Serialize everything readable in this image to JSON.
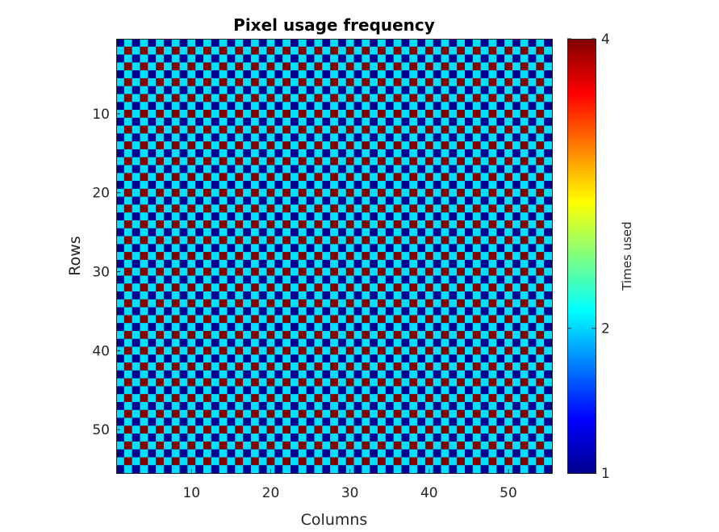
{
  "chart_data": {
    "type": "heatmap",
    "title": "Pixel usage frequency",
    "xlabel": "Columns",
    "ylabel": "Rows",
    "x_range": [
      1,
      55
    ],
    "y_range": [
      1,
      55
    ],
    "y_reversed": true,
    "x_ticks": [
      "10",
      "20",
      "30",
      "40",
      "50"
    ],
    "y_ticks": [
      "10",
      "20",
      "30",
      "40",
      "50"
    ],
    "colormap": "jet",
    "colorbar": {
      "label": "Times used",
      "limits": [
        1,
        4
      ],
      "ticks": [
        "1",
        "2",
        "4"
      ]
    },
    "pattern": {
      "description_rule": "value depends on row/column parity",
      "odd_row_odd_col": 1,
      "odd_row_even_col": 2,
      "even_row_odd_col": 2,
      "even_row_even_col": 4
    },
    "grid": false,
    "colors": {
      "v1": "#00008f",
      "v2": "#00e1ff",
      "v4": "#800000"
    }
  }
}
